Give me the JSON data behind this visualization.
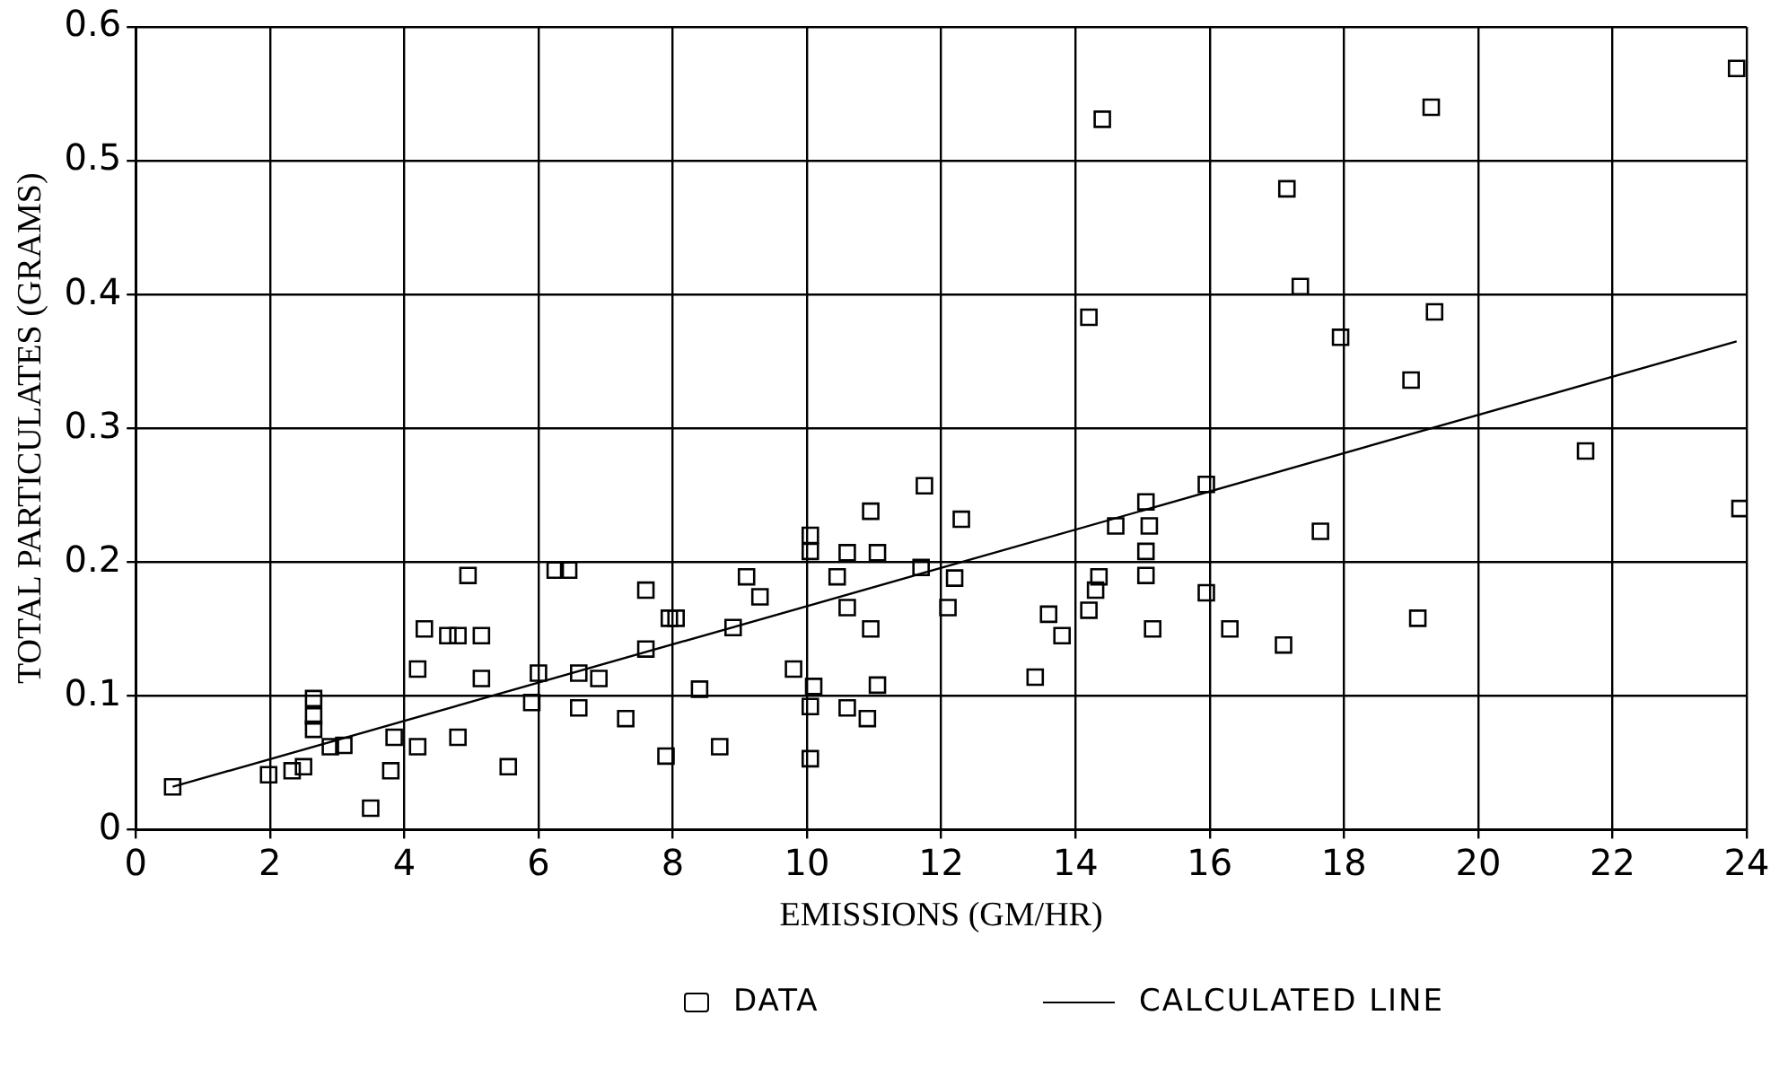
{
  "chart_data": {
    "type": "scatter",
    "xlabel": "EMISSIONS (GM/HR)",
    "ylabel": "TOTAL PARTICULATES (GRAMS)",
    "xlim": [
      0,
      24
    ],
    "ylim": [
      0,
      0.6
    ],
    "xticks": [
      0,
      2,
      4,
      6,
      8,
      10,
      12,
      14,
      16,
      18,
      20,
      22,
      24
    ],
    "yticks": [
      0,
      0.1,
      0.2,
      0.3,
      0.4,
      0.5,
      0.6
    ],
    "grid": true,
    "legend": "bottom",
    "series": [
      {
        "name": "DATA",
        "type": "scatter",
        "marker": "square",
        "color": "#000000",
        "x": [
          0.55,
          1.98,
          2.33,
          2.5,
          2.65,
          2.65,
          2.65,
          2.9,
          3.1,
          3.5,
          3.8,
          3.85,
          4.2,
          4.2,
          4.3,
          4.65,
          4.8,
          5.15,
          4.95,
          5.15,
          4.8,
          5.55,
          5.9,
          6.0,
          6.25,
          6.45,
          6.6,
          6.6,
          6.9,
          7.3,
          7.6,
          7.6,
          7.95,
          8.05,
          7.9,
          8.4,
          8.7,
          8.9,
          9.1,
          9.3,
          9.8,
          10.05,
          10.05,
          10.1,
          10.05,
          10.05,
          10.45,
          10.6,
          10.6,
          10.6,
          10.9,
          10.95,
          10.95,
          11.05,
          11.05,
          11.7,
          11.75,
          12.1,
          12.2,
          12.3,
          13.4,
          13.6,
          13.8,
          14.2,
          14.2,
          14.3,
          14.35,
          14.4,
          14.6,
          15.05,
          15.05,
          15.05,
          15.1,
          15.15,
          15.95,
          15.95,
          16.3,
          17.1,
          17.15,
          17.35,
          17.65,
          17.95,
          19.0,
          19.1,
          19.3,
          19.35,
          21.6,
          23.85,
          23.9
        ],
        "values": [
          0.032,
          0.041,
          0.044,
          0.047,
          0.098,
          0.085,
          0.075,
          0.062,
          0.063,
          0.016,
          0.044,
          0.069,
          0.062,
          0.12,
          0.15,
          0.145,
          0.145,
          0.145,
          0.19,
          0.113,
          0.069,
          0.047,
          0.095,
          0.117,
          0.194,
          0.194,
          0.091,
          0.117,
          0.113,
          0.083,
          0.179,
          0.135,
          0.158,
          0.158,
          0.055,
          0.105,
          0.062,
          0.151,
          0.189,
          0.174,
          0.12,
          0.22,
          0.208,
          0.107,
          0.092,
          0.053,
          0.189,
          0.207,
          0.166,
          0.091,
          0.083,
          0.238,
          0.15,
          0.207,
          0.108,
          0.196,
          0.257,
          0.166,
          0.188,
          0.232,
          0.114,
          0.161,
          0.145,
          0.383,
          0.164,
          0.179,
          0.189,
          0.531,
          0.227,
          0.245,
          0.208,
          0.19,
          0.227,
          0.15,
          0.258,
          0.177,
          0.15,
          0.138,
          0.479,
          0.406,
          0.223,
          0.368,
          0.336,
          0.158,
          0.54,
          0.387,
          0.283,
          0.569,
          0.24
        ]
      },
      {
        "name": "CALCULATED LINE",
        "type": "line",
        "marker": "none",
        "line_style": "solid",
        "color": "#000000",
        "x": [
          0.55,
          23.85
        ],
        "values": [
          0.032,
          0.365
        ]
      }
    ]
  }
}
